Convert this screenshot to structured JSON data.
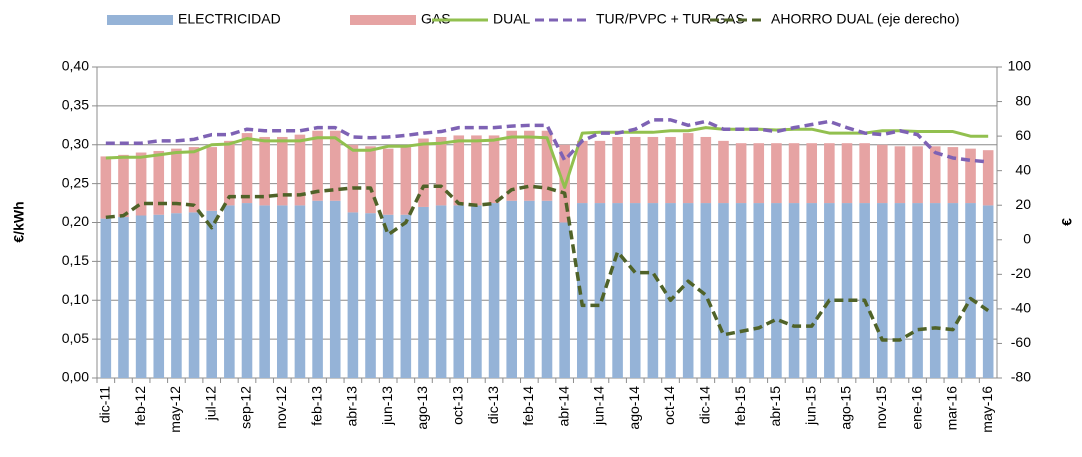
{
  "chart_data": {
    "type": "bar-line",
    "categories": [
      "dic-11",
      null,
      "feb-12",
      null,
      "may-12",
      null,
      "jul-12",
      null,
      "sep-12",
      null,
      "nov-12",
      null,
      "feb-13",
      null,
      "abr-13",
      null,
      "jun-13",
      null,
      "ago-13",
      null,
      "oct-13",
      null,
      "dic-13",
      null,
      "feb-14",
      null,
      "abr-14",
      null,
      "jun-14",
      null,
      "ago-14",
      null,
      "oct-14",
      null,
      "dic-14",
      null,
      "feb-15",
      null,
      "abr-15",
      null,
      "jun-15",
      null,
      "ago-15",
      null,
      "nov-15",
      null,
      "ene-16",
      null,
      "mar-16",
      null,
      "may-16"
    ],
    "series": [
      {
        "name": "ELECTRICIDAD",
        "kind": "bar",
        "color": "#95b3d7",
        "values": [
          0.205,
          0.207,
          0.209,
          0.21,
          0.212,
          0.213,
          0.215,
          0.222,
          0.225,
          0.222,
          0.222,
          0.222,
          0.228,
          0.228,
          0.213,
          0.212,
          0.21,
          0.21,
          0.22,
          0.222,
          0.222,
          0.222,
          0.225,
          0.228,
          0.228,
          0.228,
          0.2,
          0.225,
          0.225,
          0.225,
          0.225,
          0.225,
          0.225,
          0.225,
          0.225,
          0.225,
          0.225,
          0.225,
          0.225,
          0.225,
          0.225,
          0.225,
          0.225,
          0.225,
          0.225,
          0.225,
          0.225,
          0.225,
          0.225,
          0.225,
          0.222
        ]
      },
      {
        "name": "GAS",
        "kind": "bar",
        "color": "#e6a3a3",
        "values": [
          0.08,
          0.08,
          0.081,
          0.082,
          0.083,
          0.084,
          0.082,
          0.083,
          0.09,
          0.088,
          0.088,
          0.091,
          0.09,
          0.09,
          0.087,
          0.086,
          0.085,
          0.087,
          0.088,
          0.088,
          0.09,
          0.09,
          0.087,
          0.09,
          0.09,
          0.09,
          0.1,
          0.08,
          0.08,
          0.085,
          0.085,
          0.085,
          0.085,
          0.09,
          0.085,
          0.08,
          0.077,
          0.077,
          0.077,
          0.077,
          0.077,
          0.077,
          0.077,
          0.077,
          0.075,
          0.073,
          0.073,
          0.073,
          0.072,
          0.07,
          0.071
        ]
      },
      {
        "name": "DUAL",
        "kind": "line",
        "color": "#92c04f",
        "values": [
          0.283,
          0.284,
          0.284,
          0.287,
          0.29,
          0.291,
          0.3,
          0.301,
          0.308,
          0.305,
          0.305,
          0.305,
          0.309,
          0.309,
          0.293,
          0.293,
          0.298,
          0.298,
          0.301,
          0.302,
          0.305,
          0.305,
          0.306,
          0.31,
          0.31,
          0.309,
          0.245,
          0.315,
          0.316,
          0.316,
          0.316,
          0.316,
          0.318,
          0.318,
          0.322,
          0.32,
          0.32,
          0.32,
          0.319,
          0.32,
          0.32,
          0.315,
          0.315,
          0.315,
          0.318,
          0.318,
          0.317,
          0.317,
          0.317,
          0.311,
          0.311
        ]
      },
      {
        "name": "TUR/PVPC + TUR GAS",
        "kind": "dashed",
        "color": "#7e62b4",
        "values": [
          0.302,
          0.302,
          0.302,
          0.305,
          0.305,
          0.307,
          0.313,
          0.313,
          0.32,
          0.318,
          0.318,
          0.318,
          0.322,
          0.322,
          0.31,
          0.309,
          0.31,
          0.312,
          0.315,
          0.317,
          0.322,
          0.322,
          0.322,
          0.324,
          0.325,
          0.325,
          0.28,
          0.305,
          0.315,
          0.315,
          0.32,
          0.332,
          0.332,
          0.325,
          0.33,
          0.32,
          0.32,
          0.32,
          0.317,
          0.322,
          0.326,
          0.33,
          0.322,
          0.315,
          0.313,
          0.318,
          0.313,
          0.29,
          0.283,
          0.28,
          0.278
        ]
      },
      {
        "name": "AHORRO DUAL (eje derecho)",
        "kind": "dashed",
        "axis": "y2",
        "color": "#4f6228",
        "values": [
          13,
          14,
          21,
          21,
          21,
          20,
          7,
          25,
          25,
          25,
          26,
          26,
          28,
          29,
          30,
          30,
          3,
          10,
          31,
          31,
          21,
          20,
          21,
          29,
          31,
          30,
          27,
          -38,
          -38,
          -7,
          -19,
          -19,
          -35,
          -24,
          -32,
          -55,
          -53,
          -51,
          -46,
          -50,
          -50,
          -35,
          -35,
          -35,
          -58,
          -58,
          -52,
          -51,
          -52,
          -34,
          -41
        ]
      }
    ],
    "ylabel": "€/kWh",
    "y2label": "€",
    "ylim": [
      0,
      0.4
    ],
    "yticks": [
      {
        "value": 0,
        "label": "0,00"
      },
      {
        "value": 0.05,
        "label": "0,05"
      },
      {
        "value": 0.1,
        "label": "0,10"
      },
      {
        "value": 0.15,
        "label": "0,15"
      },
      {
        "value": 0.2,
        "label": "0,20"
      },
      {
        "value": 0.25,
        "label": "0,25"
      },
      {
        "value": 0.3,
        "label": "0,30"
      },
      {
        "value": 0.35,
        "label": "0,35"
      },
      {
        "value": 0.4,
        "label": "0,40"
      }
    ],
    "y2lim": [
      -80,
      100
    ],
    "y2ticks": [
      -80,
      -60,
      -40,
      -20,
      0,
      20,
      40,
      60,
      80,
      100
    ],
    "grid": true,
    "legend": "top"
  }
}
